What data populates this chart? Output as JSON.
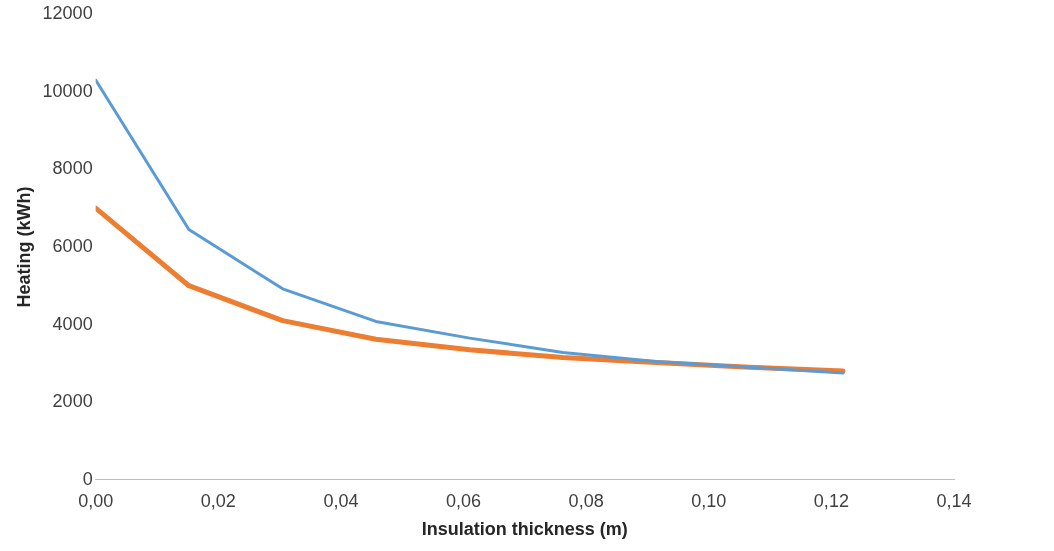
{
  "chart_data": {
    "type": "line",
    "xlabel": "Insulation thickness (m)",
    "ylabel": "Heating (kWh)",
    "xlim": [
      0,
      0.14
    ],
    "xticks": [
      {
        "value": 0,
        "label": "0,00"
      },
      {
        "value": 0.02,
        "label": "0,02"
      },
      {
        "value": 0.04,
        "label": "0,04"
      },
      {
        "value": 0.06,
        "label": "0,06"
      },
      {
        "value": 0.08,
        "label": "0,08"
      },
      {
        "value": 0.1,
        "label": "0,10"
      },
      {
        "value": 0.12,
        "label": "0,12"
      },
      {
        "value": 0.14,
        "label": "0,14"
      }
    ],
    "ylim": [
      0,
      12000
    ],
    "yticks": [
      0,
      2000,
      4000,
      6000,
      8000,
      10000,
      12000
    ],
    "x": [
      0,
      0.0152,
      0.0305,
      0.0457,
      0.061,
      0.0762,
      0.0914,
      0.1066,
      0.1219
    ],
    "series": [
      {
        "color": "#5b9bd5",
        "values": [
          10300,
          6450,
          4920,
          4080,
          3650,
          3280,
          3050,
          2900,
          2750
        ]
      },
      {
        "color": "#ed7d31",
        "values": [
          7000,
          5000,
          4100,
          3620,
          3350,
          3150,
          3020,
          2900,
          2800
        ]
      }
    ],
    "grid": false,
    "legend": false,
    "marker": "none",
    "line_style": "solid"
  }
}
